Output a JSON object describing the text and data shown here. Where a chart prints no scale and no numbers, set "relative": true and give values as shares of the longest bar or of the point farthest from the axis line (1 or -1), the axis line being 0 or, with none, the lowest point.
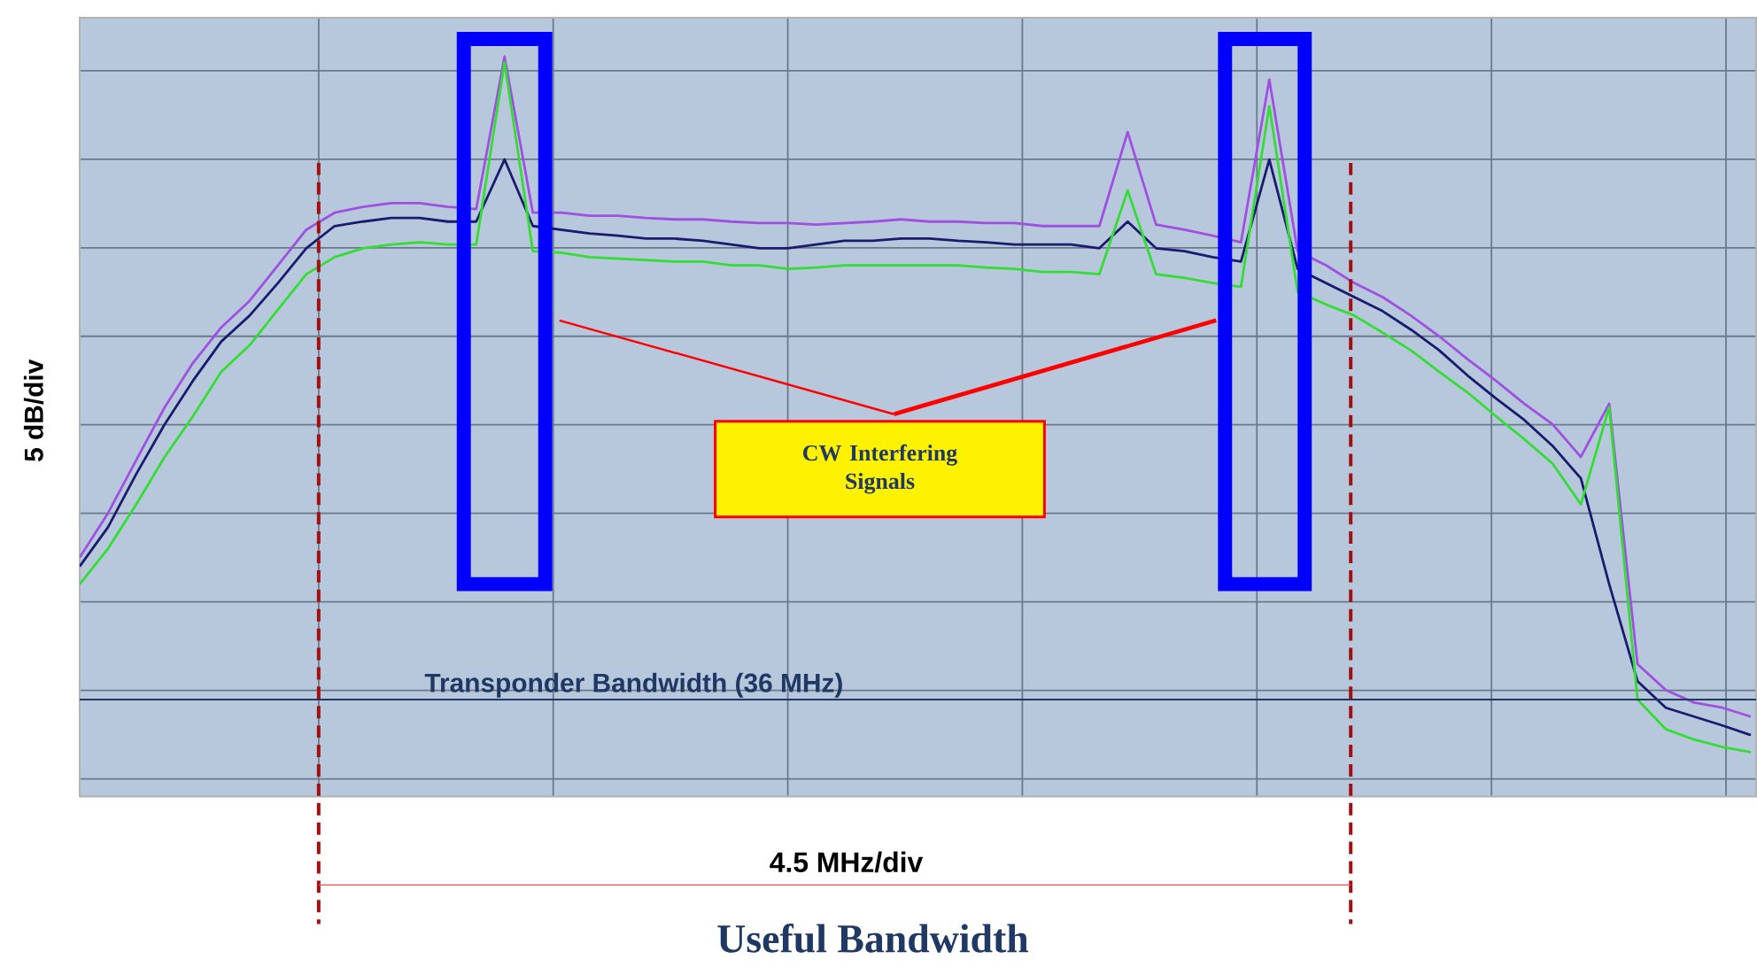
{
  "chart_data": {
    "type": "line",
    "relative": true,
    "grid": true,
    "ylabel": "5 dB/div",
    "categories": [
      null,
      null,
      null,
      null,
      null,
      null,
      null,
      null,
      null,
      null,
      null,
      null,
      null,
      null,
      null,
      null,
      null,
      null,
      null,
      null,
      null,
      null,
      null,
      null,
      null,
      null,
      null,
      null,
      null,
      null,
      null,
      null,
      null,
      null,
      null,
      null,
      null,
      null,
      null,
      null,
      null,
      null,
      null,
      null,
      null,
      null,
      null,
      null,
      null,
      null,
      null,
      null,
      null,
      null,
      null,
      null,
      null,
      null,
      null,
      null
    ],
    "series": [
      {
        "color": "#a050e0",
        "values": [
          0.323,
          0.383,
          0.455,
          0.526,
          0.586,
          0.634,
          0.67,
          0.718,
          0.766,
          0.789,
          0.797,
          0.802,
          0.802,
          0.797,
          0.794,
          1.0,
          0.789,
          0.789,
          0.785,
          0.785,
          0.782,
          0.78,
          0.78,
          0.777,
          0.775,
          0.775,
          0.773,
          0.775,
          0.777,
          0.78,
          0.777,
          0.777,
          0.775,
          0.775,
          0.771,
          0.771,
          0.771,
          0.898,
          0.773,
          0.766,
          0.758,
          0.749,
          0.969,
          0.737,
          0.718,
          0.694,
          0.675,
          0.65,
          0.622,
          0.591,
          0.562,
          0.531,
          0.503,
          0.459,
          0.531,
          0.179,
          0.144,
          0.127,
          0.12,
          0.108
        ]
      },
      {
        "color": "#1a1a6e",
        "values": [
          0.311,
          0.364,
          0.436,
          0.503,
          0.562,
          0.615,
          0.65,
          0.694,
          0.741,
          0.771,
          0.777,
          0.782,
          0.782,
          0.777,
          0.777,
          0.861,
          0.771,
          0.766,
          0.761,
          0.758,
          0.754,
          0.754,
          0.751,
          0.746,
          0.741,
          0.741,
          0.746,
          0.751,
          0.751,
          0.754,
          0.754,
          0.751,
          0.749,
          0.746,
          0.746,
          0.746,
          0.741,
          0.777,
          0.741,
          0.737,
          0.729,
          0.723,
          0.861,
          0.713,
          0.694,
          0.675,
          0.656,
          0.631,
          0.603,
          0.569,
          0.538,
          0.509,
          0.474,
          0.43,
          0.287,
          0.156,
          0.12,
          0.108,
          0.096,
          0.083
        ]
      },
      {
        "color": "#33dd33",
        "values": [
          0.287,
          0.335,
          0.395,
          0.459,
          0.514,
          0.574,
          0.61,
          0.658,
          0.706,
          0.729,
          0.741,
          0.746,
          0.749,
          0.746,
          0.746,
          0.992,
          0.737,
          0.735,
          0.729,
          0.727,
          0.725,
          0.723,
          0.723,
          0.718,
          0.718,
          0.713,
          0.715,
          0.718,
          0.718,
          0.718,
          0.718,
          0.718,
          0.715,
          0.713,
          0.709,
          0.709,
          0.706,
          0.819,
          0.706,
          0.701,
          0.694,
          0.689,
          0.933,
          0.682,
          0.665,
          0.65,
          0.627,
          0.603,
          0.574,
          0.546,
          0.514,
          0.483,
          0.45,
          0.395,
          0.526,
          0.131,
          0.091,
          0.077,
          0.067,
          0.06
        ]
      }
    ],
    "ref_lines": [
      {
        "axis": "y",
        "value": 0.131,
        "label": "Transponder Bandwidth (36 MHz)",
        "color": "#1f3864"
      }
    ],
    "annotations": [
      "CW Interfering Signals",
      "4.5 MHz/div",
      "Useful Bandwidth"
    ]
  }
}
